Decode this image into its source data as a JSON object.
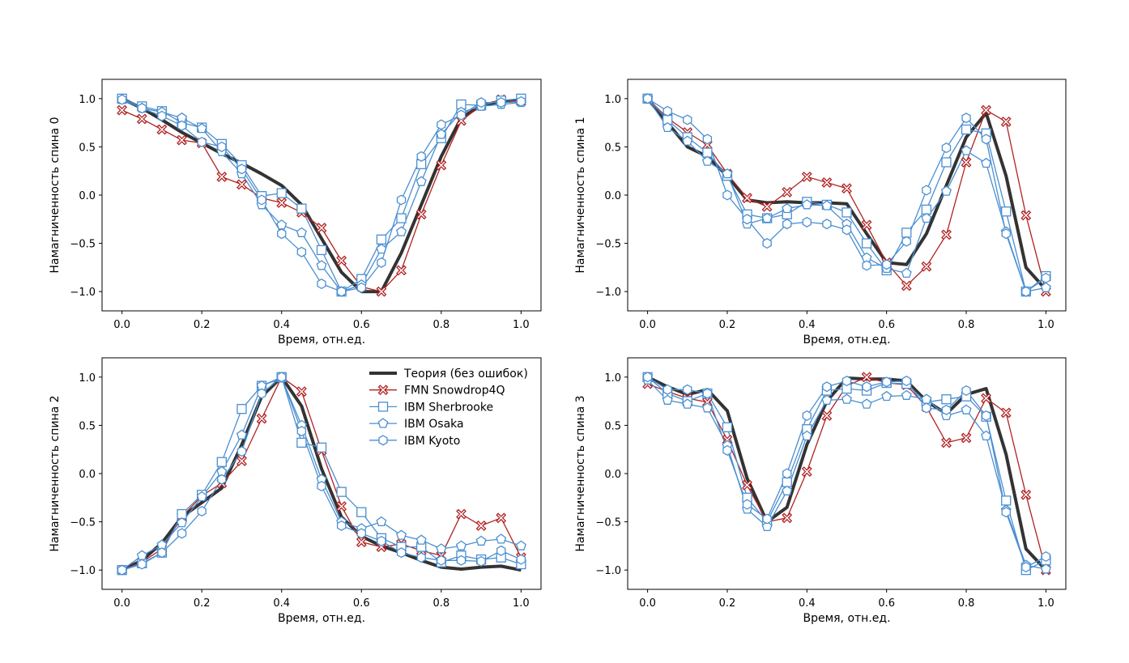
{
  "chart_data": [
    {
      "type": "line",
      "xlabel": "Время, отн.ед.",
      "ylabel": "Намагниченность спина 0",
      "xlim": [
        -0.05,
        1.05
      ],
      "ylim": [
        -1.2,
        1.2
      ],
      "xticks": [
        "0.0",
        "0.2",
        "0.4",
        "0.6",
        "0.8",
        "1.0"
      ],
      "yticks": [
        "1.0",
        "0.5",
        "0.0",
        "−0.5",
        "−1.0"
      ],
      "x": [
        0.0,
        0.05,
        0.1,
        0.15,
        0.2,
        0.25,
        0.3,
        0.35,
        0.4,
        0.45,
        0.5,
        0.55,
        0.6,
        0.65,
        0.7,
        0.75,
        0.8,
        0.85,
        0.9,
        0.95,
        1.0
      ],
      "series": [
        {
          "name": "Теория (без ошибок)",
          "values": [
            1.0,
            0.9,
            0.78,
            0.65,
            0.54,
            0.43,
            0.33,
            0.22,
            0.1,
            -0.1,
            -0.45,
            -0.8,
            -1.0,
            -1.0,
            -0.6,
            -0.1,
            0.4,
            0.8,
            0.93,
            0.97,
            0.98
          ]
        },
        {
          "name": "FMN Snowdrop4Q",
          "values": [
            0.88,
            0.79,
            0.68,
            0.57,
            0.54,
            0.19,
            0.11,
            -0.03,
            -0.08,
            -0.18,
            -0.34,
            -0.68,
            -0.95,
            -1.0,
            -0.78,
            -0.2,
            0.31,
            0.77,
            0.93,
            0.99,
            0.97
          ]
        },
        {
          "name": "IBM Sherbrooke",
          "values": [
            1.0,
            0.92,
            0.87,
            0.75,
            0.7,
            0.53,
            0.31,
            -0.01,
            0.02,
            -0.14,
            -0.57,
            -1.0,
            -0.87,
            -0.46,
            -0.24,
            0.32,
            0.59,
            0.94,
            0.93,
            0.98,
            1.0
          ]
        },
        {
          "name": "IBM Osaka",
          "values": [
            0.99,
            0.9,
            0.86,
            0.8,
            0.69,
            0.45,
            0.22,
            -0.1,
            -0.31,
            -0.39,
            -0.73,
            -1.0,
            -0.93,
            -0.56,
            -0.38,
            0.14,
            0.63,
            0.86,
            0.92,
            0.94,
            0.96
          ]
        },
        {
          "name": "IBM Kyoto",
          "values": [
            0.99,
            0.9,
            0.82,
            0.72,
            0.55,
            0.5,
            0.27,
            -0.05,
            -0.4,
            -0.59,
            -0.92,
            -1.0,
            -0.96,
            -0.7,
            -0.05,
            0.4,
            0.73,
            0.83,
            0.96,
            0.96,
            0.97
          ]
        }
      ]
    },
    {
      "type": "line",
      "xlabel": "Время, отн.ед.",
      "ylabel": "Намагниченность спина 1",
      "xlim": [
        -0.05,
        1.05
      ],
      "ylim": [
        -1.2,
        1.2
      ],
      "xticks": [
        "0.0",
        "0.2",
        "0.4",
        "0.6",
        "0.8",
        "1.0"
      ],
      "yticks": [
        "1.0",
        "0.5",
        "0.0",
        "−0.5",
        "−1.0"
      ],
      "x": [
        0.0,
        0.05,
        0.1,
        0.15,
        0.2,
        0.25,
        0.3,
        0.35,
        0.4,
        0.45,
        0.5,
        0.55,
        0.6,
        0.65,
        0.7,
        0.75,
        0.8,
        0.85,
        0.9,
        0.95,
        1.0
      ],
      "series": [
        {
          "name": "Теория (без ошибок)",
          "values": [
            1.0,
            0.75,
            0.5,
            0.4,
            0.2,
            -0.05,
            -0.08,
            -0.07,
            -0.08,
            -0.08,
            -0.09,
            -0.4,
            -0.7,
            -0.72,
            -0.4,
            0.1,
            0.6,
            0.85,
            0.2,
            -0.75,
            -0.98
          ]
        },
        {
          "name": "FMN Snowdrop4Q",
          "values": [
            1.0,
            0.8,
            0.65,
            0.52,
            0.22,
            -0.03,
            -0.12,
            0.03,
            0.19,
            0.13,
            0.07,
            -0.31,
            -0.7,
            -0.94,
            -0.74,
            -0.41,
            0.34,
            0.88,
            0.76,
            -0.21,
            -1.0
          ]
        },
        {
          "name": "IBM Sherbrooke",
          "values": [
            1.0,
            0.78,
            0.6,
            0.44,
            0.2,
            -0.2,
            -0.24,
            -0.2,
            -0.07,
            -0.1,
            -0.18,
            -0.5,
            -0.78,
            -0.39,
            -0.15,
            0.34,
            0.68,
            0.64,
            -0.17,
            -1.0,
            -0.84
          ]
        },
        {
          "name": "IBM Osaka",
          "values": [
            1.0,
            0.7,
            0.56,
            0.35,
            0.22,
            -0.3,
            -0.24,
            -0.14,
            -0.1,
            -0.11,
            -0.3,
            -0.65,
            -0.76,
            -0.81,
            -0.24,
            0.04,
            0.46,
            0.33,
            -0.38,
            -1.0,
            -0.96
          ]
        },
        {
          "name": "IBM Kyoto",
          "values": [
            1.0,
            0.87,
            0.78,
            0.58,
            0.0,
            -0.25,
            -0.5,
            -0.3,
            -0.28,
            -0.3,
            -0.36,
            -0.73,
            -0.72,
            -0.48,
            0.05,
            0.49,
            0.8,
            0.58,
            -0.4,
            -1.0,
            -0.86
          ]
        }
      ]
    },
    {
      "type": "line",
      "xlabel": "Время, отн.ед.",
      "ylabel": "Намагниченность спина 2",
      "xlim": [
        -0.05,
        1.05
      ],
      "ylim": [
        -1.2,
        1.2
      ],
      "xticks": [
        "0.0",
        "0.2",
        "0.4",
        "0.6",
        "0.8",
        "1.0"
      ],
      "yticks": [
        "1.0",
        "0.5",
        "0.0",
        "−0.5",
        "−1.0"
      ],
      "x": [
        0.0,
        0.05,
        0.1,
        0.15,
        0.2,
        0.25,
        0.3,
        0.35,
        0.4,
        0.45,
        0.5,
        0.55,
        0.6,
        0.65,
        0.7,
        0.75,
        0.8,
        0.85,
        0.9,
        0.95,
        1.0
      ],
      "series": [
        {
          "name": "Теория (без ошибок)",
          "values": [
            -1.0,
            -0.9,
            -0.72,
            -0.45,
            -0.3,
            -0.15,
            0.3,
            0.8,
            1.0,
            0.7,
            0.05,
            -0.45,
            -0.65,
            -0.75,
            -0.82,
            -0.9,
            -0.97,
            -0.99,
            -0.97,
            -0.96,
            -1.0
          ]
        },
        {
          "name": "FMN Snowdrop4Q",
          "values": [
            -1.0,
            -0.92,
            -0.78,
            -0.45,
            -0.23,
            -0.1,
            0.13,
            0.57,
            1.0,
            0.85,
            0.24,
            -0.34,
            -0.71,
            -0.76,
            -0.73,
            -0.8,
            -0.85,
            -0.42,
            -0.54,
            -0.46,
            -0.87
          ]
        },
        {
          "name": "IBM Sherbrooke",
          "values": [
            -1.0,
            -0.93,
            -0.82,
            -0.42,
            -0.22,
            0.12,
            0.67,
            0.91,
            1.0,
            0.32,
            0.27,
            -0.19,
            -0.4,
            -0.67,
            -0.76,
            -0.76,
            -0.92,
            -0.85,
            -0.89,
            -0.87,
            -0.94
          ]
        },
        {
          "name": "IBM Osaka",
          "values": [
            -1.0,
            -0.85,
            -0.74,
            -0.51,
            -0.24,
            0.02,
            0.4,
            0.91,
            0.99,
            0.5,
            -0.06,
            -0.5,
            -0.57,
            -0.5,
            -0.64,
            -0.69,
            -0.78,
            -0.75,
            -0.7,
            -0.68,
            -0.75
          ]
        },
        {
          "name": "IBM Kyoto",
          "values": [
            -1.0,
            -0.94,
            -0.82,
            -0.62,
            -0.39,
            -0.06,
            0.23,
            0.83,
            1.0,
            0.44,
            -0.13,
            -0.54,
            -0.62,
            -0.7,
            -0.82,
            -0.87,
            -0.9,
            -0.9,
            -0.91,
            -0.8,
            -0.89
          ]
        }
      ]
    },
    {
      "type": "line",
      "xlabel": "Время, отн.ед.",
      "ylabel": "Намагниченность спина 3",
      "xlim": [
        -0.05,
        1.05
      ],
      "ylim": [
        -1.2,
        1.2
      ],
      "xticks": [
        "0.0",
        "0.2",
        "0.4",
        "0.6",
        "0.8",
        "1.0"
      ],
      "yticks": [
        "1.0",
        "0.5",
        "0.0",
        "−0.5",
        "−1.0"
      ],
      "x": [
        0.0,
        0.05,
        0.1,
        0.15,
        0.2,
        0.25,
        0.3,
        0.35,
        0.4,
        0.45,
        0.5,
        0.55,
        0.6,
        0.65,
        0.7,
        0.75,
        0.8,
        0.85,
        0.9,
        0.95,
        1.0
      ],
      "series": [
        {
          "name": "Теория (без ошибок)",
          "values": [
            1.0,
            0.9,
            0.82,
            0.87,
            0.65,
            -0.05,
            -0.5,
            -0.35,
            0.3,
            0.75,
            0.99,
            0.98,
            0.98,
            0.96,
            0.75,
            0.62,
            0.82,
            0.88,
            0.2,
            -0.78,
            -1.0
          ]
        },
        {
          "name": "FMN Snowdrop4Q",
          "values": [
            0.93,
            0.85,
            0.78,
            0.74,
            0.35,
            -0.12,
            -0.5,
            -0.46,
            0.02,
            0.6,
            0.91,
            1.0,
            0.94,
            0.92,
            0.69,
            0.32,
            0.37,
            0.78,
            0.63,
            -0.22,
            -1.0
          ]
        },
        {
          "name": "IBM Sherbrooke",
          "values": [
            1.0,
            0.83,
            0.75,
            0.83,
            0.48,
            -0.25,
            -0.5,
            -0.09,
            0.46,
            0.86,
            0.88,
            0.86,
            0.94,
            0.93,
            0.74,
            0.77,
            0.8,
            0.59,
            -0.28,
            -1.0,
            -0.9
          ]
        },
        {
          "name": "IBM Osaka",
          "values": [
            0.97,
            0.76,
            0.72,
            0.68,
            0.29,
            -0.37,
            -0.55,
            -0.18,
            0.39,
            0.76,
            0.77,
            0.72,
            0.8,
            0.81,
            0.77,
            0.6,
            0.66,
            0.39,
            -0.38,
            -0.95,
            -0.99
          ]
        },
        {
          "name": "IBM Kyoto",
          "values": [
            1.0,
            0.87,
            0.87,
            0.83,
            0.24,
            -0.32,
            -0.47,
            0.0,
            0.6,
            0.9,
            0.96,
            0.9,
            0.95,
            0.96,
            0.68,
            0.66,
            0.86,
            0.6,
            -0.4,
            -0.97,
            -0.86
          ]
        }
      ]
    }
  ],
  "legend": {
    "placement": "upper-right of bottom-left subplot",
    "entries": [
      {
        "label": "Теория (без ошибок)",
        "color": "#333333",
        "marker": "none"
      },
      {
        "label": "FMN Snowdrop4Q",
        "color": "#b22222",
        "marker": "x"
      },
      {
        "label": "IBM Sherbrooke",
        "color": "#4a8fd1",
        "marker": "square"
      },
      {
        "label": "IBM Osaka",
        "color": "#4a8fd1",
        "marker": "pentagon"
      },
      {
        "label": "IBM Kyoto",
        "color": "#4a8fd1",
        "marker": "hexagon"
      }
    ]
  },
  "colors": {
    "theory": "#333333",
    "fmn": "#b22222",
    "ibm": "#4a8fd1",
    "axes": "#000000"
  }
}
